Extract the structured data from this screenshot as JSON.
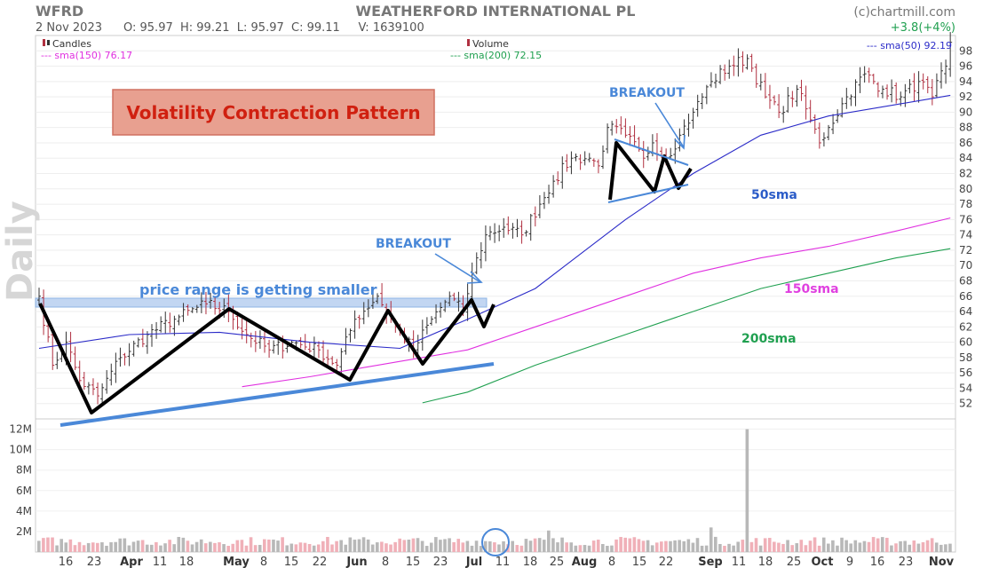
{
  "header": {
    "ticker": "WFRD",
    "company": "WEATHERFORD INTERNATIONAL PL",
    "source": "(c)chartmill.com",
    "date": "2 Nov 2023",
    "ohlcv": "O: 95.97  H: 99.21  L: 95.97  C: 99.11     V: 1639100",
    "change": "+3.8(+4%)"
  },
  "legend": {
    "candles": "Candles",
    "sma150": "--- sma(150) 76.17",
    "volume": "Volume",
    "sma200": "--- sma(200) 72.15",
    "sma50": "--- sma(50) 92.19"
  },
  "annotations": {
    "title": "Volatility Contraction Pattern",
    "range_note": "price range is getting smaller",
    "breakout1": "BREAKOUT",
    "breakout2": "BREAKOUT",
    "label_50": "50sma",
    "label_150": "150sma",
    "label_200": "200sma",
    "timeframe": "Daily"
  },
  "colors": {
    "up": "#333333",
    "down": "#b03040",
    "sma50": "#2b2bc8",
    "sma150": "#e030e0",
    "sma200": "#20a050",
    "annot_blue": "#4a88d8",
    "title_bg": "#e8a090",
    "title_text": "#d02010",
    "range_band": "#b8d0f0",
    "volume_bar": "#b8b8b8",
    "volume_down": "#f0b0b8"
  },
  "chart_data": {
    "type": "candlestick",
    "timeframe": "Daily",
    "y_axis": {
      "range": [
        50,
        100
      ],
      "ticks": [
        52,
        54,
        56,
        58,
        60,
        62,
        64,
        66,
        68,
        70,
        72,
        74,
        76,
        78,
        80,
        82,
        84,
        86,
        88,
        90,
        92,
        94,
        96,
        98
      ]
    },
    "volume_axis": {
      "range": [
        0,
        13000000
      ],
      "ticks": [
        "2M",
        "4M",
        "6M",
        "8M",
        "10M",
        "12M"
      ],
      "tick_values": [
        2000000,
        4000000,
        6000000,
        8000000,
        10000000,
        12000000
      ]
    },
    "x_labels": [
      "16",
      "23",
      "Apr",
      "11",
      "18",
      "May",
      "8",
      "15",
      "22",
      "Jun",
      "8",
      "15",
      "23",
      "Jul",
      "11",
      "18",
      "25",
      "Aug",
      "8",
      "15",
      "22",
      "Sep",
      "11",
      "18",
      "25",
      "Oct",
      "9",
      "16",
      "23",
      "Nov"
    ],
    "bold_x_labels": [
      "Apr",
      "May",
      "Jun",
      "Jul",
      "Aug",
      "Sep",
      "Oct",
      "Nov"
    ],
    "price_anchors": [
      {
        "i": 0,
        "c": 66
      },
      {
        "i": 3,
        "c": 57
      },
      {
        "i": 6,
        "c": 60
      },
      {
        "i": 9,
        "c": 55
      },
      {
        "i": 13,
        "c": 53
      },
      {
        "i": 18,
        "c": 58
      },
      {
        "i": 24,
        "c": 61
      },
      {
        "i": 30,
        "c": 63
      },
      {
        "i": 37,
        "c": 65
      },
      {
        "i": 42,
        "c": 64
      },
      {
        "i": 46,
        "c": 61
      },
      {
        "i": 51,
        "c": 59
      },
      {
        "i": 56,
        "c": 60
      },
      {
        "i": 62,
        "c": 59
      },
      {
        "i": 66,
        "c": 57
      },
      {
        "i": 70,
        "c": 63
      },
      {
        "i": 75,
        "c": 66
      },
      {
        "i": 79,
        "c": 62
      },
      {
        "i": 83,
        "c": 59
      },
      {
        "i": 87,
        "c": 63
      },
      {
        "i": 91,
        "c": 66
      },
      {
        "i": 94,
        "c": 64
      },
      {
        "i": 96,
        "c": 69
      },
      {
        "i": 99,
        "c": 74
      },
      {
        "i": 103,
        "c": 75
      },
      {
        "i": 107,
        "c": 74
      },
      {
        "i": 111,
        "c": 78
      },
      {
        "i": 114,
        "c": 81
      },
      {
        "i": 118,
        "c": 84
      },
      {
        "i": 122,
        "c": 84
      },
      {
        "i": 124,
        "c": 83
      },
      {
        "i": 126,
        "c": 88
      },
      {
        "i": 130,
        "c": 87
      },
      {
        "i": 134,
        "c": 84
      },
      {
        "i": 136,
        "c": 86
      },
      {
        "i": 139,
        "c": 84
      },
      {
        "i": 142,
        "c": 87
      },
      {
        "i": 145,
        "c": 90
      },
      {
        "i": 149,
        "c": 94
      },
      {
        "i": 153,
        "c": 96
      },
      {
        "i": 157,
        "c": 97
      },
      {
        "i": 161,
        "c": 92
      },
      {
        "i": 164,
        "c": 90
      },
      {
        "i": 168,
        "c": 93
      },
      {
        "i": 171,
        "c": 89
      },
      {
        "i": 173,
        "c": 86
      },
      {
        "i": 175,
        "c": 88
      },
      {
        "i": 179,
        "c": 92
      },
      {
        "i": 183,
        "c": 95
      },
      {
        "i": 187,
        "c": 93
      },
      {
        "i": 191,
        "c": 92
      },
      {
        "i": 195,
        "c": 94
      },
      {
        "i": 198,
        "c": 92
      },
      {
        "i": 201,
        "c": 96
      },
      {
        "i": 202,
        "c": 99.11
      }
    ],
    "series": [
      {
        "name": "sma(50)",
        "points": [
          [
            0,
            59.2
          ],
          [
            20,
            61
          ],
          [
            40,
            61.3
          ],
          [
            60,
            60
          ],
          [
            80,
            59.2
          ],
          [
            95,
            63
          ],
          [
            110,
            67
          ],
          [
            130,
            76
          ],
          [
            145,
            82
          ],
          [
            160,
            87
          ],
          [
            175,
            89.5
          ],
          [
            190,
            91
          ],
          [
            202,
            92.2
          ]
        ]
      },
      {
        "name": "sma(150)",
        "points": [
          [
            45,
            54.2
          ],
          [
            60,
            55.5
          ],
          [
            80,
            57.5
          ],
          [
            95,
            59
          ],
          [
            110,
            62
          ],
          [
            130,
            66
          ],
          [
            145,
            69
          ],
          [
            160,
            71
          ],
          [
            175,
            72.5
          ],
          [
            190,
            74.5
          ],
          [
            202,
            76.2
          ]
        ]
      },
      {
        "name": "sma(200)",
        "points": [
          [
            85,
            52.1
          ],
          [
            95,
            53.5
          ],
          [
            110,
            57
          ],
          [
            130,
            61
          ],
          [
            145,
            64
          ],
          [
            160,
            67
          ],
          [
            175,
            69
          ],
          [
            190,
            71
          ],
          [
            202,
            72.2
          ]
        ]
      }
    ],
    "volume_spike": {
      "i": 157,
      "value": 12000000
    }
  }
}
